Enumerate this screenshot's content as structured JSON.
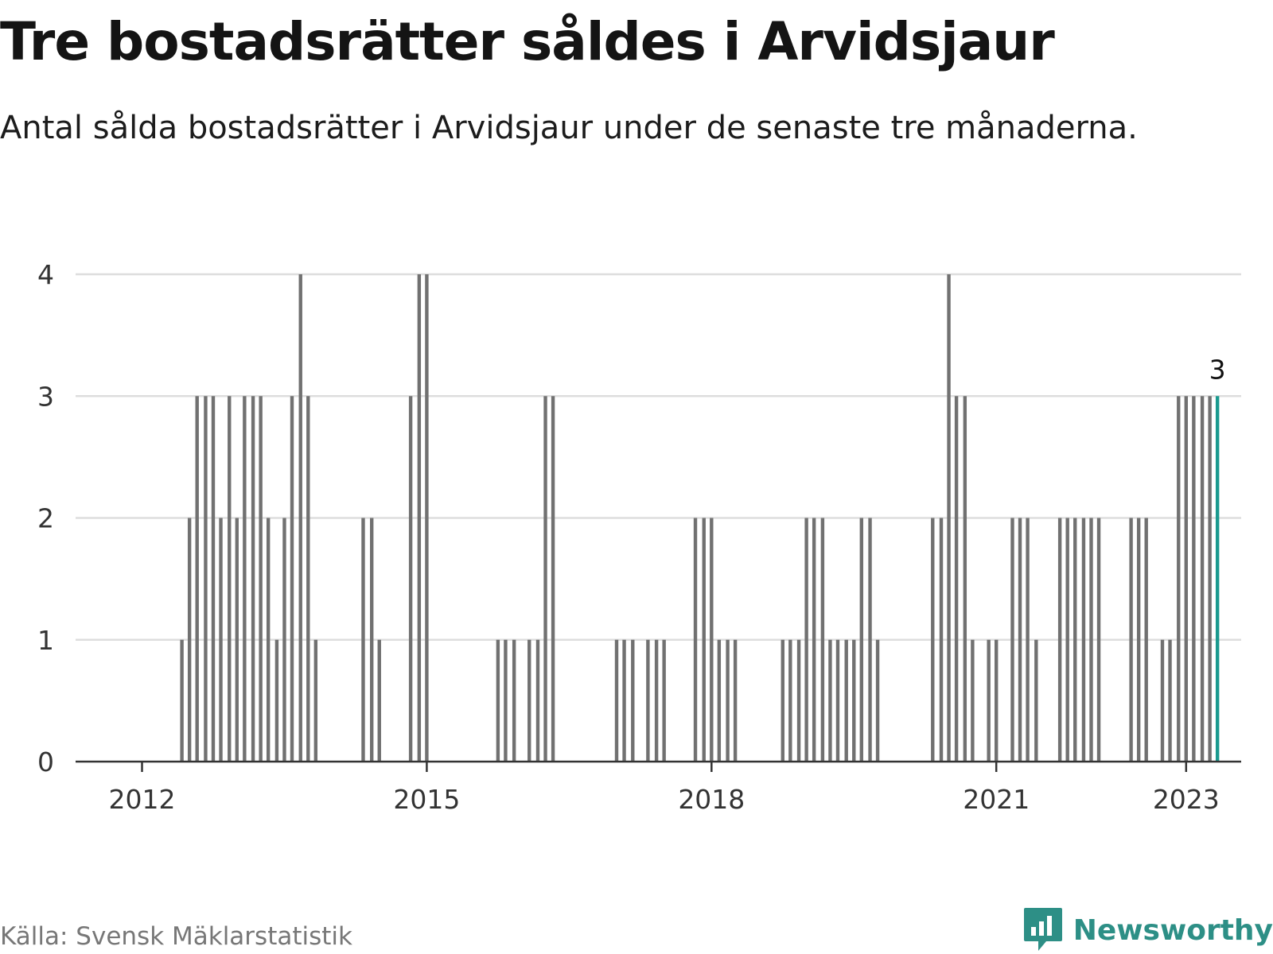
{
  "title": "Tre bostadsrätter såldes i Arvidsjaur",
  "subtitle": "Antal sålda bostadsrätter i Arvidsjaur under de senaste tre månaderna.",
  "source": "Källa: Svensk Mäklarstatistik",
  "brand": "Newsworthy",
  "colors": {
    "bar": "#717171",
    "highlight": "#1a9a8f",
    "grid": "#dddddd",
    "axis": "#333333",
    "brand": "#2d8f86"
  },
  "chart_data": {
    "type": "bar",
    "title": "Tre bostadsrätter såldes i Arvidsjaur",
    "xlabel": "",
    "ylabel": "",
    "ylim": [
      0,
      4
    ],
    "yticks": [
      0,
      1,
      2,
      3,
      4
    ],
    "x_range": [
      2011.3,
      2023.58
    ],
    "xticks": [
      {
        "value": 2012.0,
        "label": "2012"
      },
      {
        "value": 2015.0,
        "label": "2015"
      },
      {
        "value": 2018.0,
        "label": "2018"
      },
      {
        "value": 2021.0,
        "label": "2021"
      },
      {
        "value": 2023.0,
        "label": "2023"
      }
    ],
    "grid": true,
    "x": [
      2012.42,
      2012.5,
      2012.58,
      2012.67,
      2012.75,
      2012.83,
      2012.92,
      2013.0,
      2013.08,
      2013.17,
      2013.25,
      2013.33,
      2013.42,
      2013.5,
      2013.58,
      2013.67,
      2013.75,
      2013.83,
      2014.33,
      2014.42,
      2014.5,
      2014.83,
      2014.92,
      2015.0,
      2015.75,
      2015.83,
      2015.92,
      2016.08,
      2016.17,
      2016.25,
      2016.33,
      2017.0,
      2017.08,
      2017.17,
      2017.33,
      2017.42,
      2017.5,
      2017.83,
      2017.92,
      2018.0,
      2018.08,
      2018.17,
      2018.25,
      2018.75,
      2018.83,
      2018.92,
      2019.0,
      2019.08,
      2019.17,
      2019.25,
      2019.33,
      2019.42,
      2019.5,
      2019.58,
      2019.67,
      2019.75,
      2020.33,
      2020.42,
      2020.5,
      2020.58,
      2020.67,
      2020.75,
      2020.92,
      2021.0,
      2021.17,
      2021.25,
      2021.33,
      2021.42,
      2021.67,
      2021.75,
      2021.83,
      2021.92,
      2022.0,
      2022.08,
      2022.42,
      2022.5,
      2022.58,
      2022.75,
      2022.83,
      2022.92,
      2023.0,
      2023.08,
      2023.17,
      2023.25,
      2023.33
    ],
    "values": [
      1,
      2,
      3,
      3,
      3,
      2,
      3,
      2,
      3,
      3,
      3,
      2,
      1,
      2,
      3,
      4,
      3,
      1,
      2,
      2,
      1,
      3,
      4,
      4,
      1,
      1,
      1,
      1,
      1,
      3,
      3,
      1,
      1,
      1,
      1,
      1,
      1,
      2,
      2,
      2,
      1,
      1,
      1,
      1,
      1,
      1,
      2,
      2,
      2,
      1,
      1,
      1,
      1,
      2,
      2,
      1,
      2,
      2,
      4,
      3,
      3,
      1,
      1,
      1,
      2,
      2,
      2,
      1,
      2,
      2,
      2,
      2,
      2,
      2,
      2,
      2,
      2,
      1,
      1,
      3,
      3,
      3,
      3,
      3,
      3
    ],
    "highlight_last": true,
    "last_value_label": "3"
  }
}
